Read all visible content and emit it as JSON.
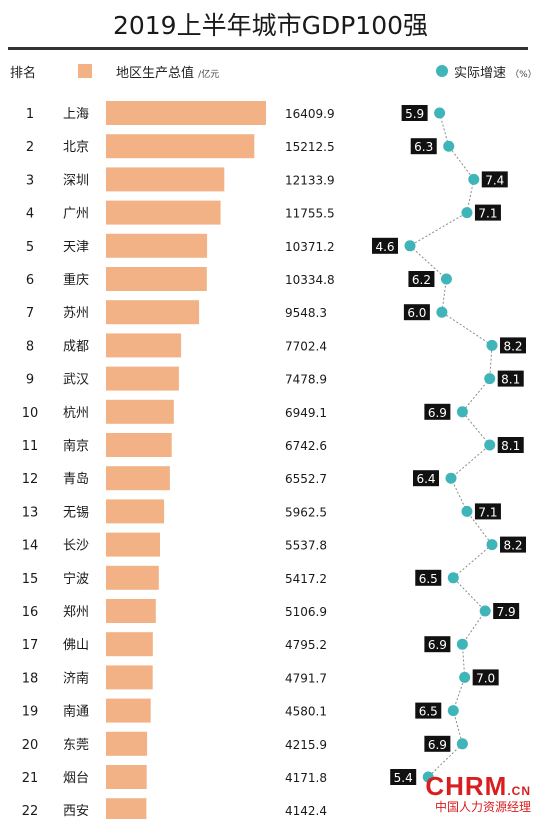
{
  "title": "2019上半年城市GDP100强",
  "headers": {
    "rank": "排名",
    "gdp": "地区生产总值",
    "gdp_unit": "/亿元",
    "growth": "实际增速",
    "growth_unit": "（%）"
  },
  "colors": {
    "bar": "#f2b285",
    "growth_dot": "#3fb4b9",
    "growth_label_bg": "#111111"
  },
  "watermark": {
    "logo": "CHRM",
    "domain": ".CN",
    "subtitle": "中国人力资源经理"
  },
  "chart_data": {
    "type": "bar",
    "orientation": "horizontal",
    "ranks": [
      1,
      2,
      3,
      4,
      5,
      6,
      7,
      8,
      9,
      10,
      11,
      12,
      13,
      14,
      15,
      16,
      17,
      18,
      19,
      20,
      21,
      22
    ],
    "categories": [
      "上海",
      "北京",
      "深圳",
      "广州",
      "天津",
      "重庆",
      "苏州",
      "成都",
      "武汉",
      "杭州",
      "南京",
      "青岛",
      "无锡",
      "长沙",
      "宁波",
      "郑州",
      "佛山",
      "济南",
      "南通",
      "东莞",
      "烟台",
      "西安"
    ],
    "series": [
      {
        "name": "地区生产总值",
        "type": "bar",
        "values": [
          16409.9,
          15212.5,
          12133.9,
          11755.5,
          10371.2,
          10334.8,
          9548.3,
          7702.4,
          7478.9,
          6949.1,
          6742.6,
          6552.7,
          5962.5,
          5537.8,
          5417.2,
          5106.9,
          4795.2,
          4791.7,
          4580.1,
          4215.9,
          4171.8,
          4142.4
        ],
        "labels": [
          "16409.9",
          "15212.5",
          "12133.9",
          "11755.5",
          "10371.2",
          "10334.8",
          "9548.3",
          "7702.4",
          "7478.9",
          "6949.1",
          "6742.6",
          "6552.7",
          "5962.5",
          "5537.8",
          "5417.2",
          "5106.9",
          "4795.2",
          "4791.7",
          "4580.1",
          "4215.9",
          "4171.8",
          "4142.4"
        ]
      },
      {
        "name": "实际增速",
        "type": "line",
        "values": [
          5.9,
          6.3,
          7.4,
          7.1,
          4.6,
          6.2,
          6.0,
          8.2,
          8.1,
          6.9,
          8.1,
          6.4,
          7.1,
          8.2,
          6.5,
          7.9,
          6.9,
          7.0,
          6.5,
          6.9,
          5.4,
          null
        ],
        "labels": [
          "5.9",
          "6.3",
          "7.4",
          "7.1",
          "4.6",
          "6.2",
          "6.0",
          "8.2",
          "8.1",
          "6.9",
          "8.1",
          "6.4",
          "7.1",
          "8.2",
          "6.5",
          "7.9",
          "6.9",
          "7.0",
          "6.5",
          "6.9",
          "5.4",
          ""
        ]
      }
    ],
    "legend_position": "top",
    "grid": false
  }
}
